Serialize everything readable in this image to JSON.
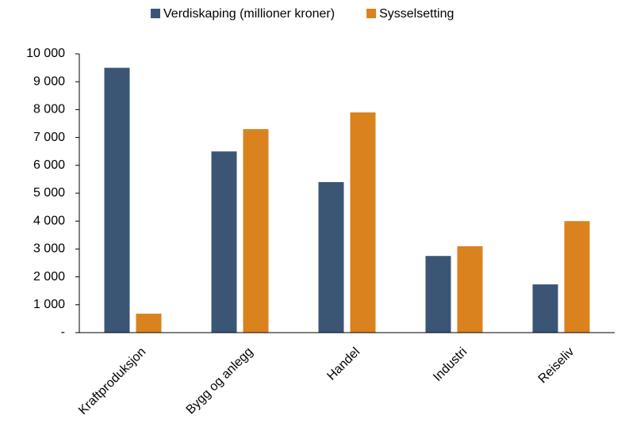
{
  "chart_data": {
    "type": "bar",
    "categories": [
      "Kraftproduksjon",
      "Bygg og anlegg",
      "Handel",
      "Industri",
      "Reiseliv"
    ],
    "series": [
      {
        "name": "Verdiskaping (millioner kroner)",
        "color": "#3b5675",
        "values": [
          9500,
          6500,
          5400,
          2750,
          1730
        ]
      },
      {
        "name": "Sysselsetting",
        "color": "#d9821e",
        "values": [
          680,
          7300,
          7900,
          3100,
          4000
        ]
      }
    ],
    "ylim": [
      0,
      10000
    ],
    "yticks": [
      {
        "value": 0,
        "label": "-"
      },
      {
        "value": 1000,
        "label": "1 000"
      },
      {
        "value": 2000,
        "label": "2 000"
      },
      {
        "value": 3000,
        "label": "3 000"
      },
      {
        "value": 4000,
        "label": "4 000"
      },
      {
        "value": 5000,
        "label": "5 000"
      },
      {
        "value": 6000,
        "label": "6 000"
      },
      {
        "value": 7000,
        "label": "7 000"
      },
      {
        "value": 8000,
        "label": "8 000"
      },
      {
        "value": 9000,
        "label": "9 000"
      },
      {
        "value": 10000,
        "label": "10 000"
      }
    ],
    "grid": false,
    "legend": "top"
  }
}
